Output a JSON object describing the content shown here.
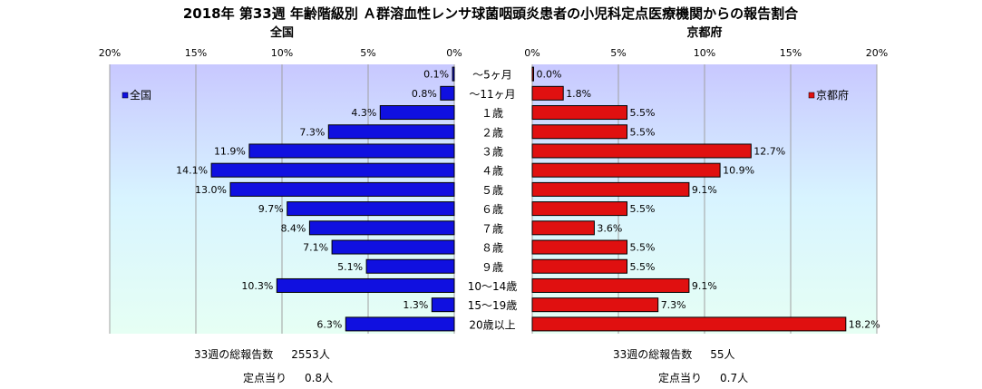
{
  "title": "2018年 第33週 年齢階級別 Ａ群溶血性レンサ球菌咽頭炎患者の小児科定点医療機関からの報告割合",
  "categories": [
    "～5ヶ月",
    "～11ヶ月",
    "１歳",
    "２歳",
    "３歳",
    "４歳",
    "５歳",
    "６歳",
    "７歳",
    "８歳",
    "９歳",
    "10～14歳",
    "15～19歳",
    "20歳以上"
  ],
  "chart_data": [
    {
      "type": "bar",
      "orientation": "horizontal",
      "direction": "left",
      "title": "全国",
      "categories": [
        "～5ヶ月",
        "～11ヶ月",
        "１歳",
        "２歳",
        "３歳",
        "４歳",
        "５歳",
        "６歳",
        "７歳",
        "８歳",
        "９歳",
        "10～14歳",
        "15～19歳",
        "20歳以上"
      ],
      "series": [
        {
          "name": "全国",
          "values": [
            0.1,
            0.8,
            4.3,
            7.3,
            11.9,
            14.1,
            13.0,
            9.7,
            8.4,
            7.1,
            5.1,
            10.3,
            1.3,
            6.3
          ],
          "color": "#1010e0"
        }
      ],
      "data_labels": [
        "0.1%",
        "0.8%",
        "4.3%",
        "7.3%",
        "11.9%",
        "14.1%",
        "13.0%",
        "9.7%",
        "8.4%",
        "7.1%",
        "5.1%",
        "10.3%",
        "1.3%",
        "6.3%"
      ],
      "xlim": [
        0,
        20
      ],
      "ticks": [
        "20%",
        "15%",
        "10%",
        "5%",
        "0%"
      ],
      "legend": "left",
      "grid": true
    },
    {
      "type": "bar",
      "orientation": "horizontal",
      "direction": "right",
      "title": "京都府",
      "categories": [
        "～5ヶ月",
        "～11ヶ月",
        "１歳",
        "２歳",
        "３歳",
        "４歳",
        "５歳",
        "６歳",
        "７歳",
        "８歳",
        "９歳",
        "10～14歳",
        "15～19歳",
        "20歳以上"
      ],
      "series": [
        {
          "name": "京都府",
          "values": [
            0.0,
            1.8,
            5.5,
            5.5,
            12.7,
            10.9,
            9.1,
            5.5,
            3.6,
            5.5,
            5.5,
            9.1,
            7.3,
            18.2
          ],
          "color": "#e01010"
        }
      ],
      "data_labels": [
        "0.0%",
        "1.8%",
        "5.5%",
        "5.5%",
        "12.7%",
        "10.9%",
        "9.1%",
        "5.5%",
        "3.6%",
        "5.5%",
        "5.5%",
        "9.1%",
        "7.3%",
        "18.2%"
      ],
      "xlim": [
        0,
        20
      ],
      "ticks": [
        "0%",
        "5%",
        "10%",
        "15%",
        "20%"
      ],
      "legend": "right",
      "grid": true
    }
  ],
  "footer": {
    "national_total_label": "33週の総報告数",
    "national_total_value": "2553人",
    "national_per_label": "定点当り",
    "national_per_value": "0.8人",
    "kyoto_total_label": "33週の総報告数",
    "kyoto_total_value": "55人",
    "kyoto_per_label": "定点当り",
    "kyoto_per_value": "0.7人"
  }
}
